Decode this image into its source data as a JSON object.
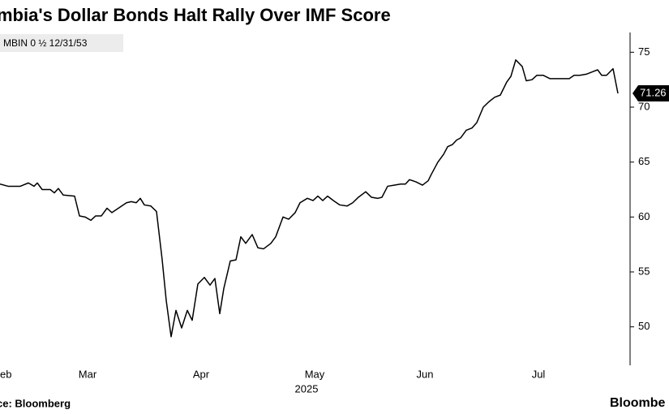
{
  "chart_data": {
    "type": "line",
    "title": "mbia's Dollar Bonds Halt Rally Over IMF Score",
    "source": "ce: Bloomberg",
    "brand": "Bloombe",
    "year_label": "2025",
    "series": [
      {
        "name": "MBIN 0 ½ 12/31/53",
        "color": "#000000",
        "x": [
          0,
          2.5,
          6.25,
          8.75,
          10.5,
          11.5,
          13,
          15.5,
          16.75,
          18,
          19.5,
          23,
          24.5,
          26.25,
          28,
          29.5,
          31.25,
          33,
          34.5,
          36.5,
          39,
          40.5,
          42,
          43.25,
          44.5,
          46.5,
          48.25,
          50,
          51.25,
          52.75,
          54.25,
          56,
          57.75,
          59.25,
          61,
          63,
          64.75,
          66.25,
          67.75,
          69,
          71,
          72.75,
          74.25,
          75.75,
          77.75,
          79.5,
          81.25,
          83.5,
          85,
          87.25,
          89,
          91,
          92.5,
          94.75,
          96.5,
          98,
          99.5,
          101,
          102.75,
          104.75,
          107,
          108.75,
          110.5,
          112.75,
          114.5,
          116.5,
          117.75,
          119.5,
          121.5,
          123.5,
          125,
          126.25,
          128.25,
          130.25,
          132,
          133,
          135,
          136.75,
          138,
          139.5,
          140.75,
          142,
          143.75,
          145.5,
          147,
          149,
          150.75,
          152.5,
          154.25,
          156.25,
          157.5,
          159,
          161,
          162.25,
          164,
          165.5,
          167.5,
          169.5,
          171.5,
          173.5,
          175.5,
          177,
          178.75,
          180.75,
          182.5,
          184.25,
          185.5,
          187,
          189,
          190.5
        ],
        "values": [
          63.0,
          62.8,
          62.8,
          63.1,
          62.8,
          63.1,
          62.5,
          62.5,
          62.2,
          62.6,
          62.0,
          61.9,
          60.1,
          60.0,
          59.7,
          60.1,
          60.1,
          60.8,
          60.4,
          60.8,
          61.3,
          61.4,
          61.3,
          61.7,
          61.1,
          61.0,
          60.5,
          56.1,
          52.4,
          49.1,
          51.5,
          49.9,
          51.5,
          50.6,
          53.9,
          54.5,
          53.8,
          54.4,
          51.2,
          53.5,
          56.0,
          56.1,
          58.2,
          57.6,
          58.4,
          57.2,
          57.1,
          57.6,
          58.2,
          60.0,
          59.8,
          60.4,
          61.3,
          61.7,
          61.5,
          61.9,
          61.5,
          61.9,
          61.5,
          61.1,
          61.0,
          61.3,
          61.8,
          62.3,
          61.8,
          61.7,
          61.8,
          62.8,
          62.9,
          63.0,
          63.0,
          63.4,
          63.2,
          62.9,
          63.3,
          63.9,
          65.0,
          65.7,
          66.4,
          66.6,
          67.0,
          67.2,
          67.9,
          68.1,
          68.6,
          70.0,
          70.5,
          70.9,
          71.1,
          72.3,
          72.8,
          74.3,
          73.7,
          72.4,
          72.5,
          72.9,
          72.9,
          72.6,
          72.6,
          72.6,
          72.6,
          72.9,
          72.9,
          73.0,
          73.2,
          73.4,
          72.9,
          72.9,
          73.5,
          71.26
        ],
        "last_label": "71.26"
      }
    ],
    "xlim": [
      0,
      194
    ],
    "xticks": [
      {
        "value": 0,
        "label": "eb"
      },
      {
        "value": 27,
        "label": "Mar"
      },
      {
        "value": 62,
        "label": "Apr"
      },
      {
        "value": 97,
        "label": "May"
      },
      {
        "value": 131,
        "label": "Jun"
      },
      {
        "value": 166,
        "label": "Jul"
      }
    ],
    "ylim": [
      46.5,
      76.8
    ],
    "yticks": [
      50,
      55,
      60,
      65,
      70,
      75
    ],
    "grid": false
  }
}
